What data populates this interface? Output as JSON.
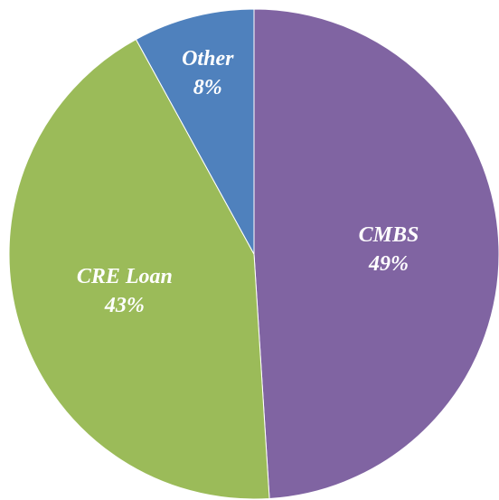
{
  "chart_data": {
    "type": "pie",
    "categories": [
      "CMBS",
      "CRE Loan",
      "Other"
    ],
    "values": [
      49,
      43,
      8
    ],
    "value_labels": [
      "49%",
      "43%",
      "8%"
    ],
    "colors": [
      "#8064a2",
      "#9bbb59",
      "#4f81bd"
    ]
  }
}
